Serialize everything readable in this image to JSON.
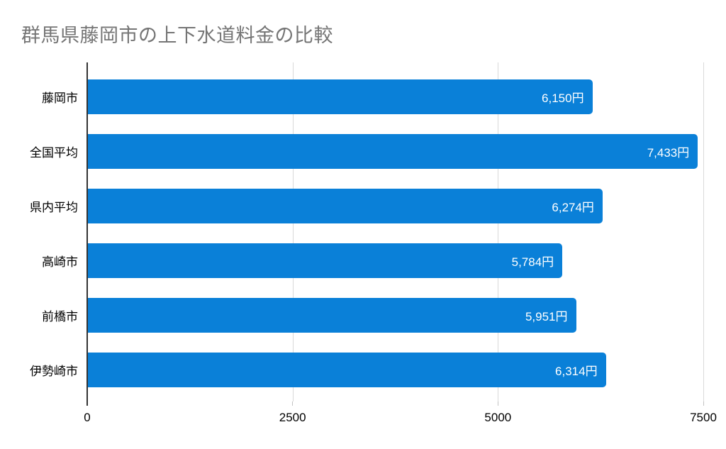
{
  "chart_data": {
    "type": "bar",
    "orientation": "horizontal",
    "title": "群馬県藤岡市の上下水道料金の比較",
    "categories": [
      "藤岡市",
      "全国平均",
      "県内平均",
      "高崎市",
      "前橋市",
      "伊勢崎市"
    ],
    "values": [
      6150,
      7433,
      6274,
      5784,
      5951,
      6314
    ],
    "value_labels": [
      "6,150円",
      "7,433円",
      "6,274円",
      "5,784円",
      "5,951円",
      "6,314円"
    ],
    "x_ticks": [
      0,
      2500,
      5000,
      7500
    ],
    "x_tick_labels": [
      "0",
      "2500",
      "5000",
      "7500"
    ],
    "xlim": [
      0,
      7500
    ],
    "grid": true,
    "legend": "none",
    "colors": {
      "bar": "#0a80d8",
      "title": "#757575",
      "grid": "#d9d9d9",
      "axis_line": "#333333",
      "tick": "#c2c2c2",
      "category_label": "#000000",
      "value_label": "#ffffff",
      "x_tick_label": "#000000"
    }
  }
}
